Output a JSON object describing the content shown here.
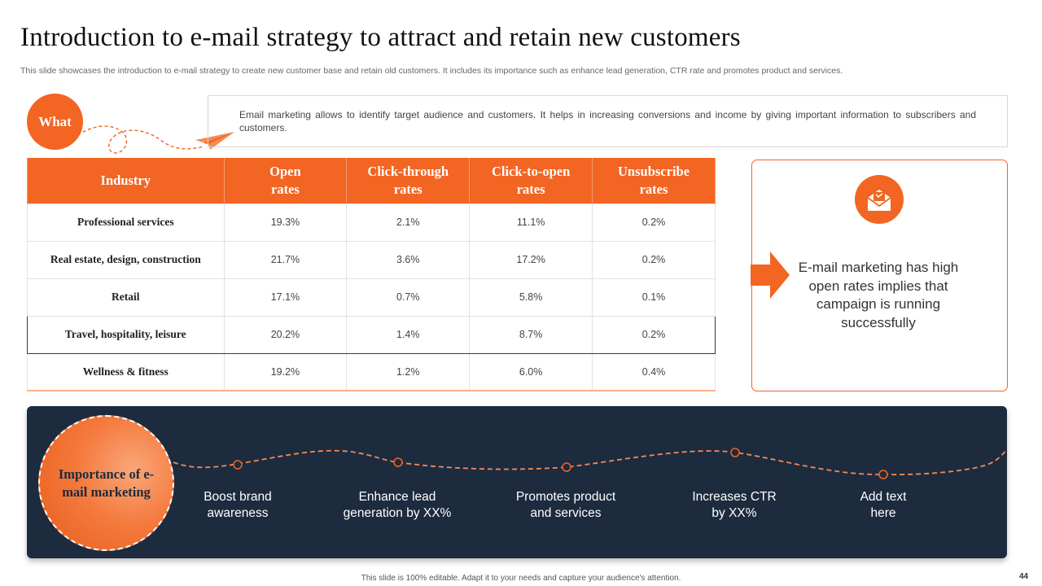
{
  "slide": {
    "title": "Introduction to e-mail strategy to attract and retain new customers",
    "subtitle": "This slide showcases the introduction to e-mail strategy to create new customer base and retain old customers. It includes its importance such as enhance lead generation, CTR rate and promotes product and services."
  },
  "what": {
    "label": "What",
    "text": "Email marketing allows to identify target audience and customers. It helps in increasing conversions and income by giving important information to subscribers and customers."
  },
  "table": {
    "headers": [
      "Industry",
      "Open rates",
      "Click-through rates",
      "Click-to-open rates",
      "Unsubscribe rates"
    ],
    "rows": [
      [
        "Professional services",
        "19.3%",
        "2.1%",
        "11.1%",
        "0.2%"
      ],
      [
        "Real estate, design, construction",
        "21.7%",
        "3.6%",
        "17.2%",
        "0.2%"
      ],
      [
        "Retail",
        "17.1%",
        "0.7%",
        "5.8%",
        "0.1%"
      ],
      [
        "Travel, hospitality, leisure",
        "20.2%",
        "1.4%",
        "8.7%",
        "0.2%"
      ],
      [
        "Wellness & fitness",
        "19.2%",
        "1.2%",
        "6.0%",
        "0.4%"
      ]
    ]
  },
  "insight": {
    "icon": "mail-icon",
    "text": "E-mail marketing has high open rates implies that campaign is running successfully"
  },
  "importance": {
    "label": "Importance of e-mail marketing",
    "steps": [
      "Boost brand awareness",
      "Enhance lead generation by XX%",
      "Promotes product and services",
      "Increases CTR by XX%",
      "Add text here"
    ]
  },
  "footer": {
    "note": "This slide is 100% editable. Adapt it to your needs and capture your audience's attention.",
    "page": "44"
  },
  "colors": {
    "accent": "#f26522",
    "navy": "#1d2b3f"
  }
}
